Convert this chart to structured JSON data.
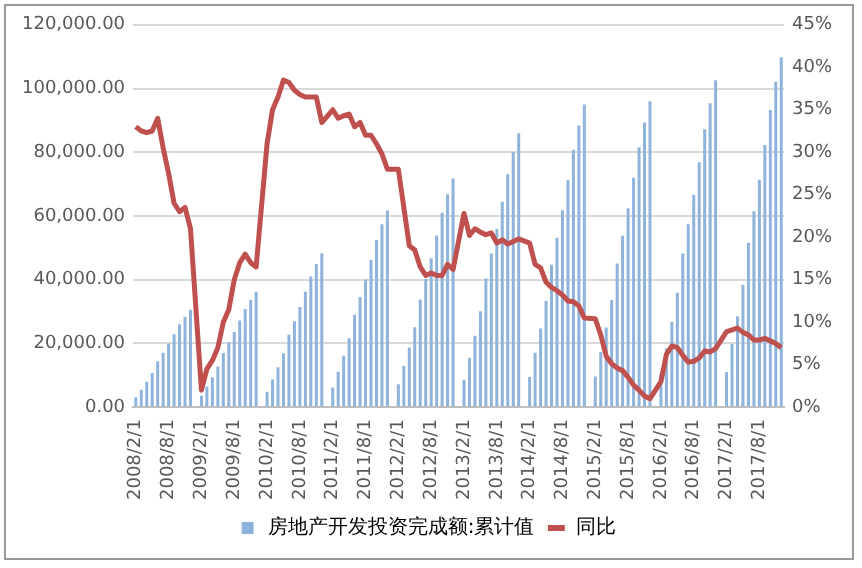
{
  "chart_data": {
    "type": "bar",
    "categories": [
      "2008/2/1",
      null,
      null,
      null,
      null,
      null,
      "2008/8/1",
      null,
      null,
      null,
      null,
      null,
      "2009/2/1",
      null,
      null,
      null,
      null,
      null,
      "2009/8/1",
      null,
      null,
      null,
      null,
      null,
      "2010/2/1",
      null,
      null,
      null,
      null,
      null,
      "2010/8/1",
      null,
      null,
      null,
      null,
      null,
      "2011/2/1",
      null,
      null,
      null,
      null,
      null,
      "2011/8/1",
      null,
      null,
      null,
      null,
      null,
      "2012/2/1",
      null,
      null,
      null,
      null,
      null,
      "2012/8/1",
      null,
      null,
      null,
      null,
      null,
      "2013/2/1",
      null,
      null,
      null,
      null,
      null,
      "2013/8/1",
      null,
      null,
      null,
      null,
      null,
      "2014/2/1",
      null,
      null,
      null,
      null,
      null,
      "2014/8/1",
      null,
      null,
      null,
      null,
      null,
      "2015/2/1",
      null,
      null,
      null,
      null,
      null,
      "2015/8/1",
      null,
      null,
      null,
      null,
      null,
      "2016/2/1",
      null,
      null,
      null,
      null,
      null,
      "2016/8/1",
      null,
      null,
      null,
      null,
      null,
      "2017/2/1",
      null,
      null,
      null,
      null,
      null,
      "2017/8/1",
      null,
      null,
      null,
      null
    ],
    "series": [
      {
        "name": "房地产开发投资完成额:累计值",
        "color": "#8fb4dc",
        "values": [
          3100,
          5500,
          8000,
          10700,
          14400,
          17100,
          19900,
          22900,
          26000,
          28400,
          30600,
          null,
          3600,
          6500,
          9400,
          12700,
          17000,
          20300,
          23600,
          27200,
          30800,
          33700,
          36200,
          null,
          4800,
          8700,
          12500,
          16900,
          22700,
          27000,
          31400,
          36200,
          41000,
          44900,
          48300,
          null,
          6200,
          11100,
          16100,
          21600,
          29000,
          34600,
          40100,
          46300,
          52500,
          57400,
          61700,
          null,
          7200,
          12900,
          18700,
          25100,
          33700,
          40200,
          46700,
          53900,
          61000,
          66800,
          71800,
          null,
          8600,
          15500,
          22400,
          30100,
          40400,
          48200,
          55900,
          64500,
          73100,
          80000,
          86000,
          null,
          9500,
          17100,
          24700,
          33300,
          44700,
          53200,
          61800,
          71300,
          80800,
          88400,
          95000,
          null,
          9600,
          17300,
          25000,
          33600,
          45100,
          53800,
          62400,
          72000,
          81600,
          89300,
          96000,
          null,
          10300,
          18500,
          26700,
          35900,
          48200,
          57400,
          66700,
          76900,
          87200,
          95400,
          102600,
          null,
          11000,
          19800,
          28500,
          38400,
          51600,
          61500,
          71400,
          82300,
          93300,
          102100,
          109800
        ]
      },
      {
        "name": "同比",
        "type": "line",
        "axis": "y2",
        "color": "#c0504d",
        "values": [
          33,
          32.5,
          32.3,
          32.5,
          34,
          30.5,
          27.5,
          24,
          23,
          23.5,
          21,
          null,
          2,
          4.5,
          5.5,
          7,
          10,
          11.5,
          15,
          17,
          18,
          17,
          16.5,
          null,
          31,
          35,
          36.5,
          38.5,
          38.2,
          37.3,
          36.8,
          36.5,
          36.5,
          36.5,
          33.5,
          null,
          35,
          34,
          34.3,
          34.5,
          33,
          33.5,
          32,
          32,
          31,
          29.8,
          28,
          null,
          28,
          23.5,
          19,
          18.5,
          16.5,
          15.5,
          15.8,
          15.5,
          15.5,
          16.8,
          16.2,
          null,
          22.8,
          20.2,
          21,
          20.6,
          20.3,
          20.5,
          19.3,
          19.7,
          19.2,
          19.5,
          19.8,
          null,
          19.3,
          16.8,
          16.4,
          14.7,
          14.1,
          13.7,
          13.2,
          12.5,
          12.4,
          11.9,
          10.5,
          null,
          10.4,
          8.5,
          6,
          5.1,
          4.6,
          4.3,
          3.5,
          2.6,
          2,
          1.3,
          1,
          null,
          3,
          6.2,
          7.2,
          7,
          6.1,
          5.3,
          5.4,
          5.8,
          6.6,
          6.5,
          6.9,
          null,
          8.9,
          9.1,
          9.3,
          8.8,
          8.5,
          7.9,
          7.9,
          8.1,
          7.8,
          7.5,
          7
        ]
      }
    ],
    "ylim": [
      0,
      120000
    ],
    "yticks": [
      {
        "value": 0,
        "label": "0.00"
      },
      {
        "value": 20000,
        "label": "20,000.00"
      },
      {
        "value": 40000,
        "label": "40,000.00"
      },
      {
        "value": 60000,
        "label": "60,000.00"
      },
      {
        "value": 80000,
        "label": "80,000.00"
      },
      {
        "value": 100000,
        "label": "100,000.00"
      },
      {
        "value": 120000,
        "label": "120,000.00"
      }
    ],
    "y2lim": [
      0,
      45
    ],
    "y2ticks": [
      {
        "value": 0,
        "label": "0%"
      },
      {
        "value": 5,
        "label": "5%"
      },
      {
        "value": 10,
        "label": "10%"
      },
      {
        "value": 15,
        "label": "15%"
      },
      {
        "value": 20,
        "label": "20%"
      },
      {
        "value": 25,
        "label": "25%"
      },
      {
        "value": 30,
        "label": "30%"
      },
      {
        "value": 35,
        "label": "35%"
      },
      {
        "value": 40,
        "label": "40%"
      },
      {
        "value": 45,
        "label": "45%"
      }
    ],
    "grid": "y",
    "legend": "bottom",
    "marker": "none"
  }
}
